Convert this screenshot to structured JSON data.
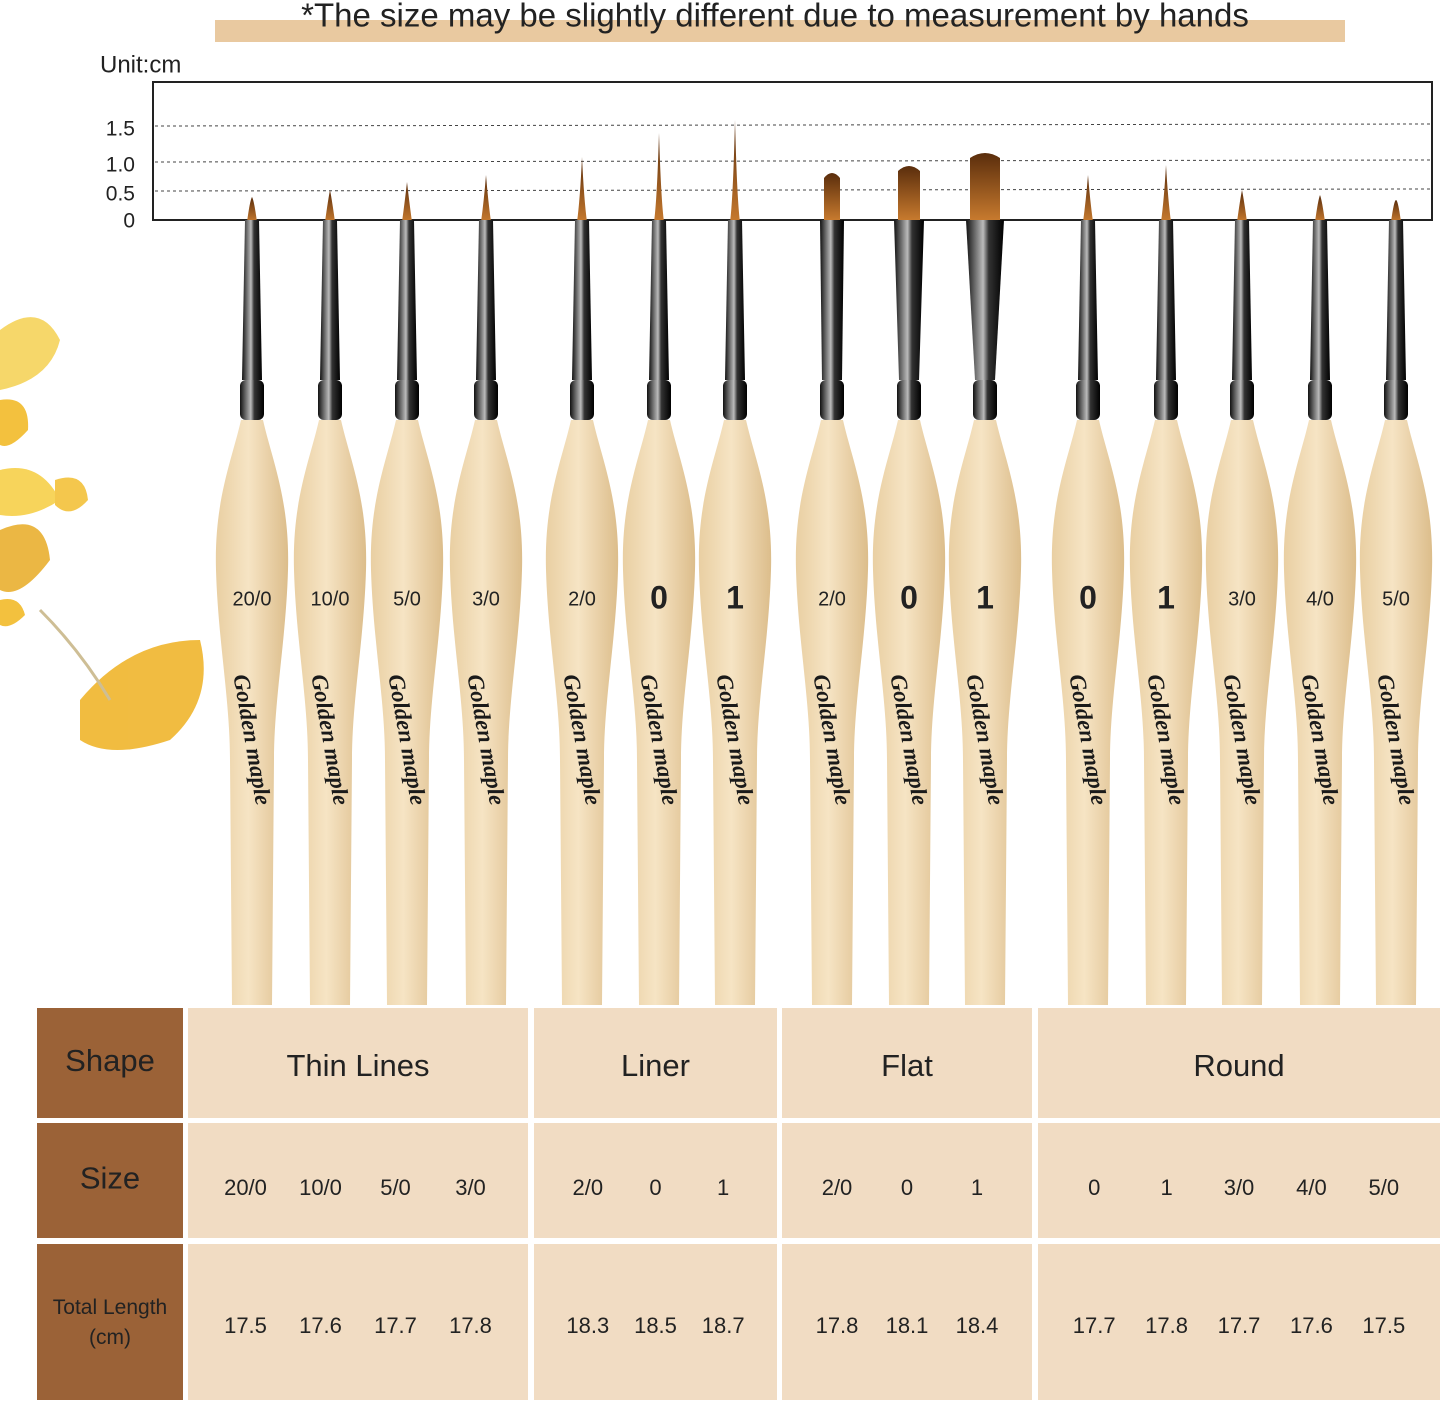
{
  "note": "*The size may be slightly different due to measurement by hands",
  "unit": "Unit:cm",
  "scale": [
    "1.5",
    "1.0",
    "0.5",
    "0"
  ],
  "brand": "Golden maple",
  "table": {
    "row_headers": [
      "Shape",
      "Size",
      "Total Length\n(cm)"
    ],
    "groups": [
      {
        "shape": "Thin Lines",
        "sizes": [
          "20/0",
          "10/0",
          "5/0",
          "3/0"
        ],
        "lengths": [
          "17.5",
          "17.6",
          "17.7",
          "17.8"
        ]
      },
      {
        "shape": "Liner",
        "sizes": [
          "2/0",
          "0",
          "1"
        ],
        "lengths": [
          "18.3",
          "18.5",
          "18.7"
        ]
      },
      {
        "shape": "Flat",
        "sizes": [
          "2/0",
          "0",
          "1"
        ],
        "lengths": [
          "17.8",
          "18.1",
          "18.4"
        ]
      },
      {
        "shape": "Round",
        "sizes": [
          "0",
          "1",
          "3/0",
          "4/0",
          "5/0"
        ],
        "lengths": [
          "17.7",
          "17.8",
          "17.7",
          "17.6",
          "17.5"
        ]
      }
    ]
  }
}
